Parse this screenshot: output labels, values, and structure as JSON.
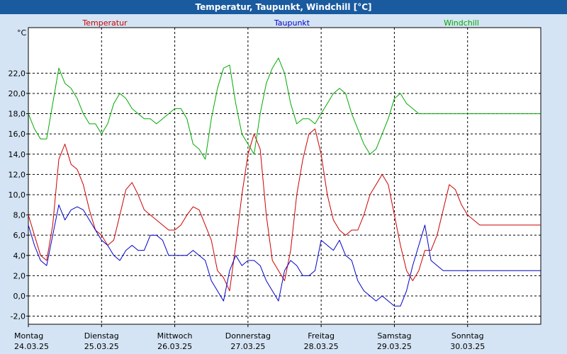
{
  "window": {
    "title": "Temperatur, Taupunkt, Windchill [°C]"
  },
  "chart_data": {
    "type": "line",
    "unit_label": "°C",
    "ylim": [
      -2.8,
      26.5
    ],
    "yticks": [
      -2.0,
      0.0,
      2.0,
      4.0,
      6.0,
      8.0,
      10.0,
      12.0,
      14.0,
      16.0,
      18.0,
      20.0,
      22.0
    ],
    "ytick_labels": [
      "-2,0",
      "0,0",
      "2,0",
      "4,0",
      "6,0",
      "8,0",
      "10,0",
      "12,0",
      "14,0",
      "16,0",
      "18,0",
      "20,0",
      "22,0"
    ],
    "xlim": [
      0,
      168
    ],
    "day_ticks": [
      {
        "pos": 0,
        "day": "Montag",
        "date": "24.03.25"
      },
      {
        "pos": 24,
        "day": "Dienstag",
        "date": "25.03.25"
      },
      {
        "pos": 48,
        "day": "Mittwoch",
        "date": "26.03.25"
      },
      {
        "pos": 72,
        "day": "Donnerstag",
        "date": "27.03.25"
      },
      {
        "pos": 96,
        "day": "Freitag",
        "date": "28.03.25"
      },
      {
        "pos": 120,
        "day": "Samstag",
        "date": "29.03.25"
      },
      {
        "pos": 144,
        "day": "Sonntag",
        "date": "30.03.25"
      }
    ],
    "series": [
      {
        "name": "Temperatur",
        "color": "#cc0000",
        "x": [
          0,
          2,
          4,
          6,
          8,
          10,
          12,
          14,
          16,
          18,
          20,
          22,
          24,
          26,
          28,
          30,
          32,
          34,
          36,
          38,
          40,
          42,
          44,
          46,
          48,
          50,
          52,
          54,
          56,
          58,
          60,
          62,
          64,
          66,
          68,
          70,
          72,
          74,
          76,
          78,
          80,
          82,
          84,
          86,
          88,
          90,
          92,
          94,
          96,
          98,
          100,
          102,
          104,
          106,
          108,
          110,
          112,
          114,
          116,
          118,
          120,
          122,
          124,
          126,
          128,
          130,
          132,
          134,
          136,
          138,
          140,
          142,
          144,
          146,
          148,
          150,
          152,
          154,
          156,
          158,
          160,
          162,
          164,
          166,
          168
        ],
        "values": [
          8.0,
          6.0,
          4.0,
          3.5,
          7.0,
          13.5,
          15.0,
          13.0,
          12.5,
          11.0,
          8.5,
          6.5,
          6.0,
          5.0,
          5.5,
          8.0,
          10.5,
          11.2,
          10.0,
          8.5,
          8.0,
          7.5,
          7.0,
          6.5,
          6.5,
          7.0,
          8.0,
          8.8,
          8.5,
          7.0,
          5.5,
          2.5,
          1.8,
          0.5,
          5.0,
          10.0,
          14.0,
          16.0,
          14.5,
          8.0,
          3.5,
          2.5,
          1.5,
          4.5,
          10.0,
          13.5,
          16.0,
          16.5,
          14.0,
          10.0,
          7.5,
          6.5,
          6.0,
          6.5,
          6.5,
          8.0,
          10.0,
          11.0,
          12.0,
          11.0,
          8.0,
          5.0,
          2.5,
          1.5,
          2.5,
          4.5,
          4.5,
          6.0,
          8.5,
          11.0,
          10.5,
          9.0,
          8.0,
          7.5,
          7.0,
          7.0,
          7.0,
          7.0,
          7.0,
          7.0,
          7.0,
          7.0,
          7.0,
          7.0,
          7.0
        ]
      },
      {
        "name": "Taupunkt",
        "color": "#0000cc",
        "x": [
          0,
          2,
          4,
          6,
          8,
          10,
          12,
          14,
          16,
          18,
          20,
          22,
          24,
          26,
          28,
          30,
          32,
          34,
          36,
          38,
          40,
          42,
          44,
          46,
          48,
          50,
          52,
          54,
          56,
          58,
          60,
          62,
          64,
          66,
          68,
          70,
          72,
          74,
          76,
          78,
          80,
          82,
          84,
          86,
          88,
          90,
          92,
          94,
          96,
          98,
          100,
          102,
          104,
          106,
          108,
          110,
          112,
          114,
          116,
          118,
          120,
          122,
          124,
          126,
          128,
          130,
          132,
          134,
          136,
          138,
          140,
          142,
          144,
          146,
          148,
          150,
          152,
          154,
          156,
          158,
          160,
          162,
          164,
          166,
          168
        ],
        "values": [
          7.0,
          5.0,
          3.5,
          3.0,
          6.0,
          9.0,
          7.5,
          8.5,
          8.8,
          8.5,
          7.5,
          6.5,
          5.5,
          5.0,
          4.0,
          3.5,
          4.5,
          5.0,
          4.5,
          4.5,
          6.0,
          6.0,
          5.5,
          4.0,
          4.0,
          4.0,
          4.0,
          4.5,
          4.0,
          3.5,
          1.5,
          0.5,
          -0.5,
          2.5,
          4.0,
          3.0,
          3.5,
          3.5,
          3.0,
          1.5,
          0.5,
          -0.5,
          2.5,
          3.5,
          3.0,
          2.0,
          2.0,
          2.5,
          5.5,
          5.0,
          4.5,
          5.5,
          4.0,
          3.5,
          1.5,
          0.5,
          0.0,
          -0.5,
          0.0,
          -0.5,
          -1.0,
          -1.0,
          0.5,
          3.0,
          5.0,
          7.0,
          3.5,
          3.0,
          2.5,
          2.5,
          2.5,
          2.5,
          2.5,
          2.5,
          2.5,
          2.5,
          2.5,
          2.5,
          2.5,
          2.5,
          2.5,
          2.5,
          2.5,
          2.5,
          2.5
        ]
      },
      {
        "name": "Windchill",
        "color": "#00aa00",
        "x": [
          0,
          2,
          4,
          6,
          8,
          10,
          12,
          14,
          16,
          18,
          20,
          22,
          24,
          26,
          28,
          30,
          32,
          34,
          36,
          38,
          40,
          42,
          44,
          46,
          48,
          50,
          52,
          54,
          56,
          58,
          60,
          62,
          64,
          66,
          68,
          70,
          72,
          74,
          76,
          78,
          80,
          82,
          84,
          86,
          88,
          90,
          92,
          94,
          96,
          98,
          100,
          102,
          104,
          106,
          108,
          110,
          112,
          114,
          116,
          118,
          120,
          122,
          124,
          126,
          128,
          130,
          132,
          134,
          136,
          138,
          140,
          142,
          144,
          146,
          148,
          150,
          152,
          154,
          156,
          158,
          160,
          162,
          164,
          166,
          168
        ],
        "values": [
          18.0,
          16.5,
          15.5,
          15.5,
          19.0,
          22.5,
          21.0,
          20.5,
          19.5,
          18.0,
          17.0,
          17.0,
          16.0,
          17.0,
          19.0,
          20.0,
          19.5,
          18.5,
          18.0,
          17.5,
          17.5,
          17.0,
          17.5,
          18.0,
          18.5,
          18.5,
          17.5,
          15.0,
          14.5,
          13.5,
          17.5,
          20.5,
          22.5,
          22.8,
          19.0,
          16.0,
          15.0,
          14.0,
          18.0,
          21.0,
          22.5,
          23.5,
          22.0,
          19.0,
          17.0,
          17.5,
          17.5,
          17.0,
          18.0,
          19.0,
          20.0,
          20.5,
          20.0,
          18.0,
          16.5,
          15.0,
          14.0,
          14.5,
          16.0,
          17.5,
          19.5,
          20.0,
          19.0,
          18.5,
          18.0,
          18.0,
          18.0,
          18.0,
          18.0,
          18.0,
          18.0,
          18.0,
          18.0,
          18.0,
          18.0,
          18.0,
          18.0,
          18.0,
          18.0,
          18.0,
          18.0,
          18.0,
          18.0,
          18.0,
          18.0
        ]
      }
    ]
  }
}
